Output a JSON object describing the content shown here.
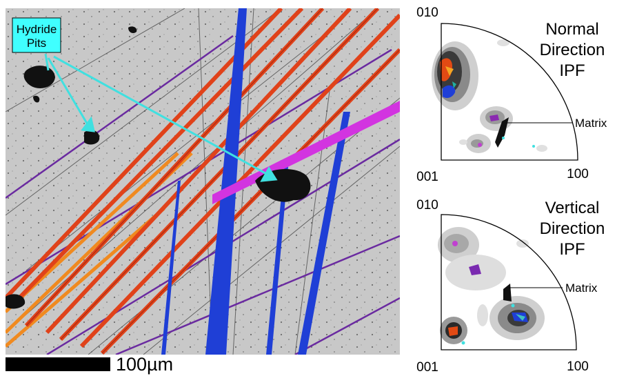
{
  "micrograph": {
    "callout": {
      "line1": "Hydride",
      "line2": "Pits",
      "fill": "#40ffff"
    },
    "scale_label": "100µm",
    "colors": {
      "background": "#c8c8c8",
      "red_bands": "#e0421a",
      "blue_bands": "#1f3fd6",
      "magenta_band": "#d234e0",
      "purple_lines": "#6a2aa0",
      "orange_bands": "#f08a20",
      "arrow": "#40e0e0"
    }
  },
  "ipf_normal": {
    "title": [
      "Normal",
      "Direction",
      "IPF"
    ],
    "corner_top": "010",
    "corner_left": "001",
    "corner_right": "100",
    "matrix_label": "Matrix"
  },
  "ipf_vertical": {
    "title": [
      "Vertical",
      "Direction",
      "IPF"
    ],
    "corner_top": "010",
    "corner_left": "001",
    "corner_right": "100",
    "matrix_label": "Matrix"
  }
}
